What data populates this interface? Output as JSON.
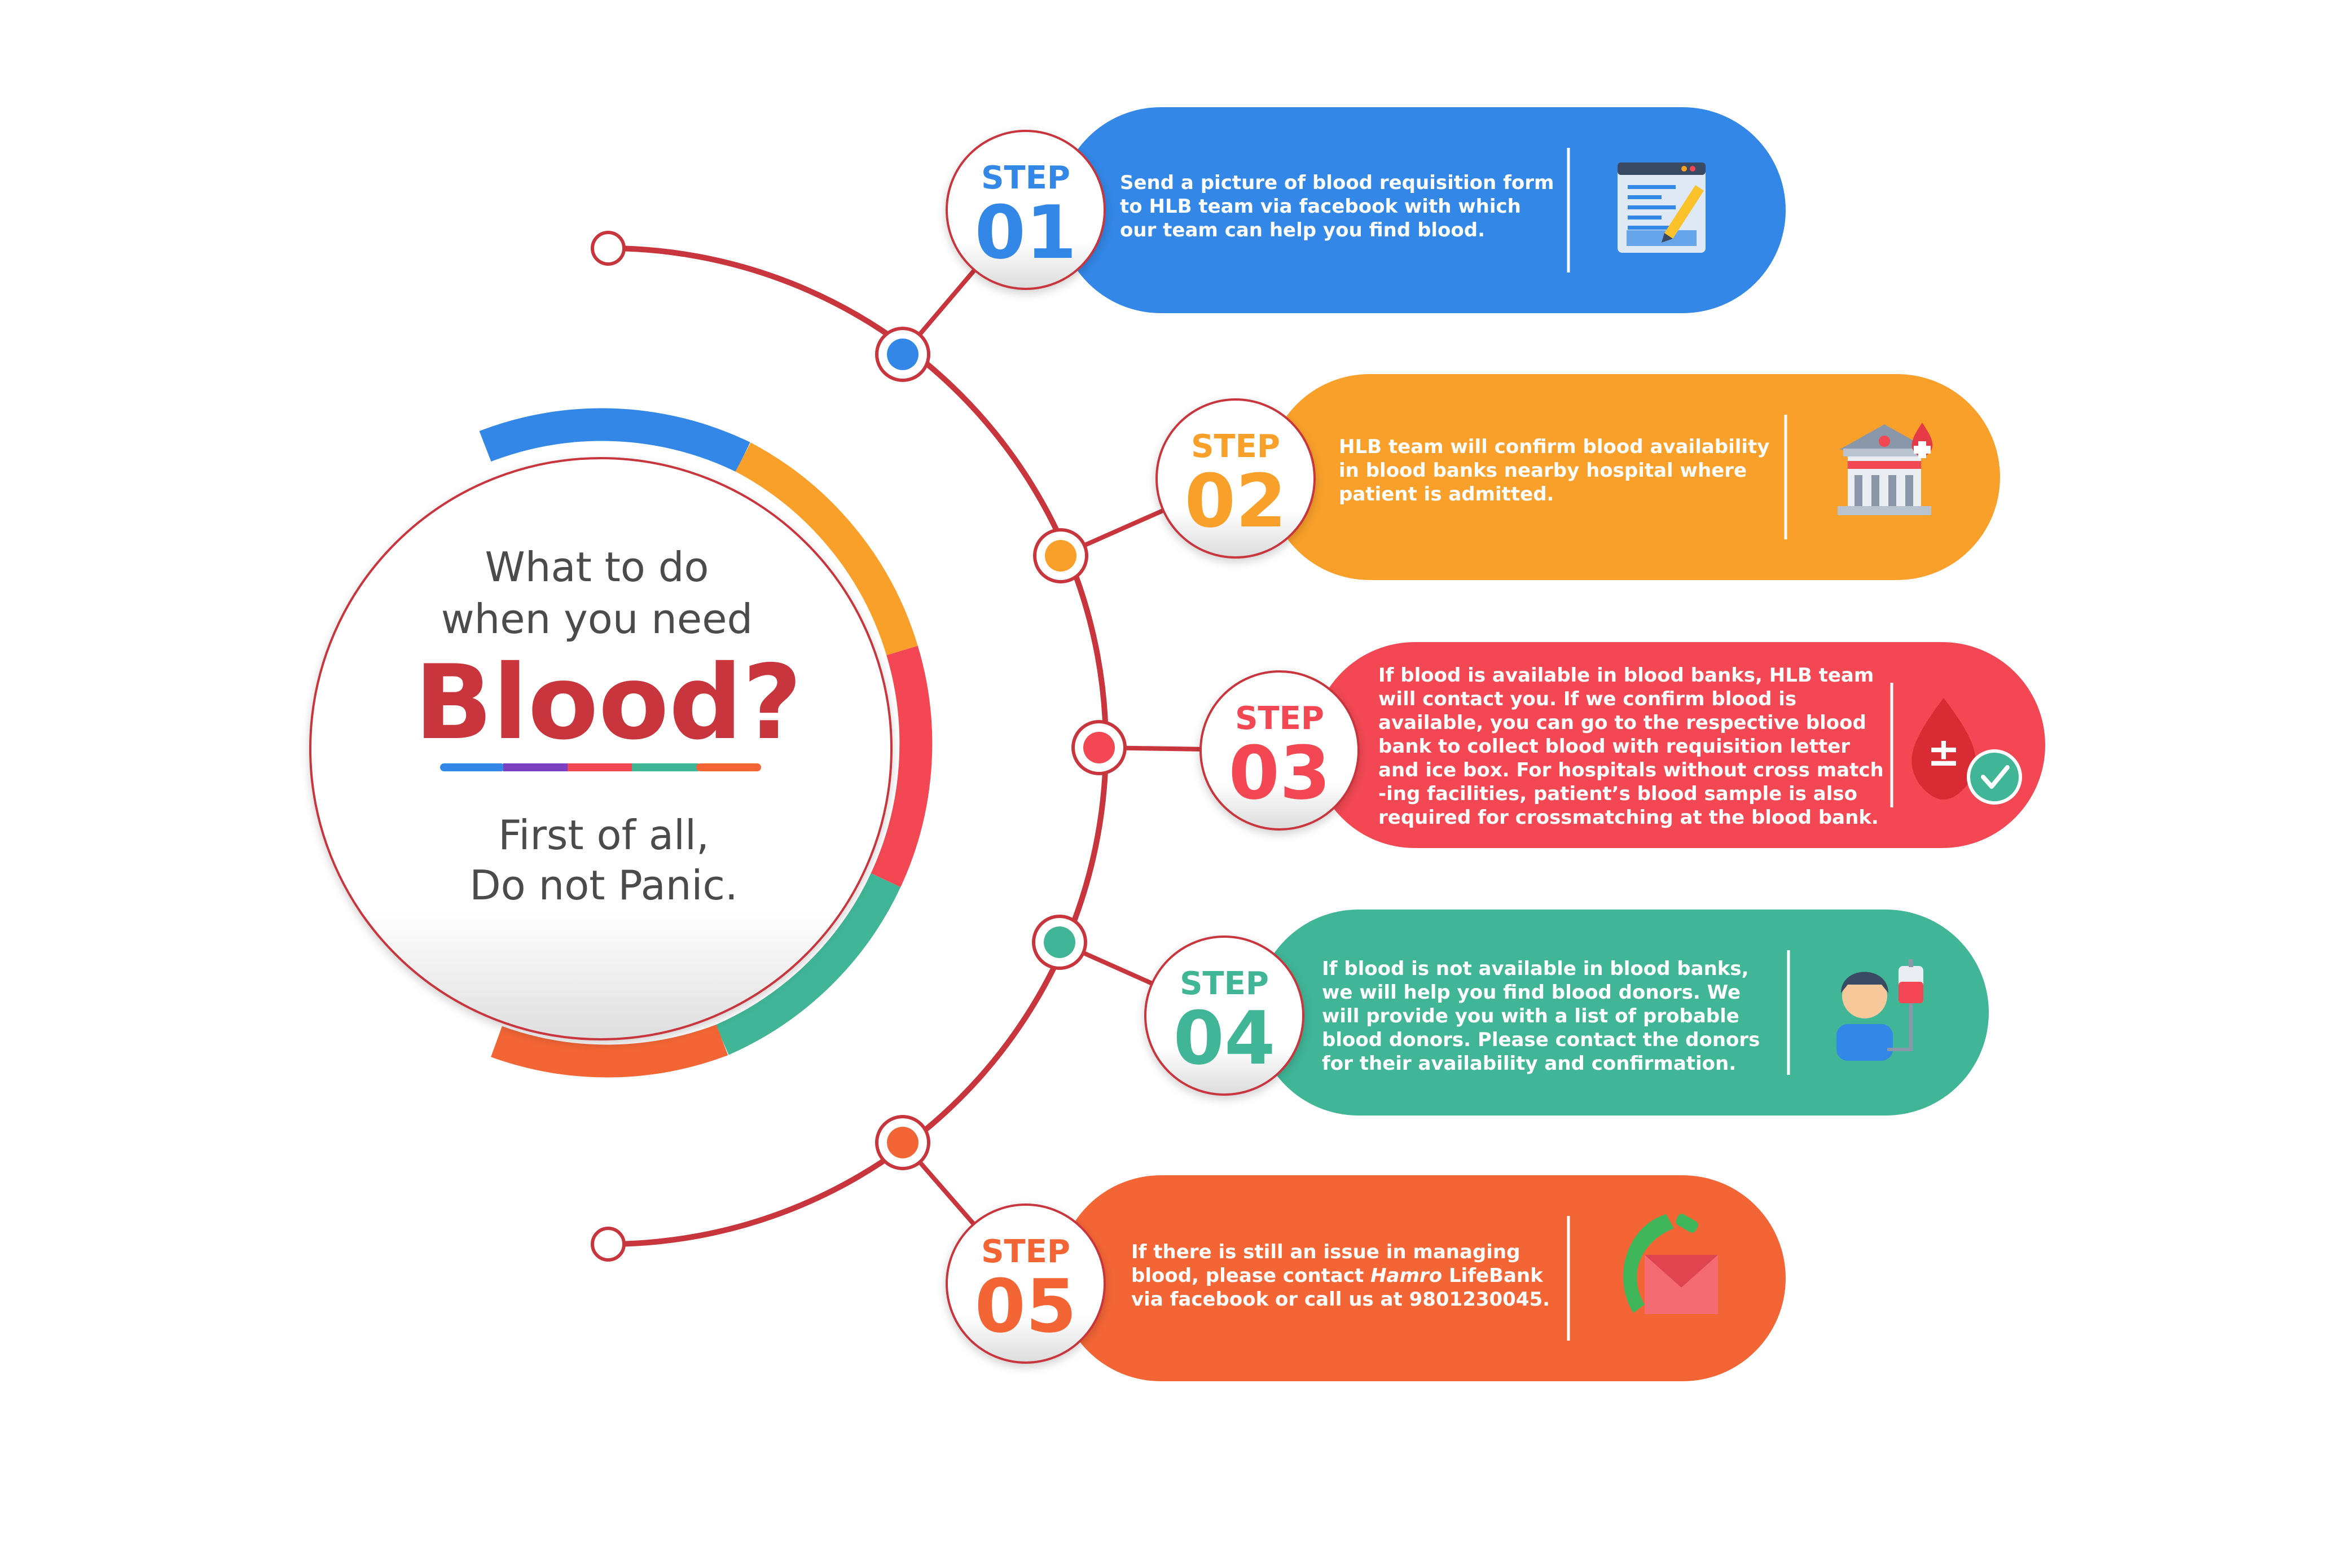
{
  "center": {
    "line1": "What to do",
    "line2": "when you need",
    "headline": "Blood?",
    "footer1": "First of all,",
    "footer2": "Do not Panic."
  },
  "colors": {
    "blue": "#3387e6",
    "orange": "#f9a02a",
    "red": "#f34853",
    "teal": "#40b696",
    "deep_orange": "#f46535",
    "purple": "#7b3fc1",
    "dark_red": "#c9353c",
    "spine": "#c9353c"
  },
  "steps": [
    {
      "label": "STEP",
      "number": "01",
      "color": "#3387e6",
      "icon": "form-edit-icon",
      "lines": [
        "Send a picture of blood requisition form",
        "to HLB team via facebook with which",
        "our team can help you find blood."
      ]
    },
    {
      "label": "STEP",
      "number": "02",
      "color": "#f9a02a",
      "icon": "blood-bank-icon",
      "lines": [
        "HLB team will confirm blood availability",
        "in blood banks nearby hospital where",
        "patient is admitted."
      ]
    },
    {
      "label": "STEP",
      "number": "03",
      "color": "#f34853",
      "icon": "blood-drop-check-icon",
      "lines": [
        "If blood is available in blood banks, HLB team",
        "will contact you. If we confirm blood is",
        "available, you can go to the respective blood",
        "bank to collect blood with requisition letter",
        "and ice box. For hospitals without cross match",
        "-ing facilities, patient’s blood sample is also",
        "required for crossmatching at the blood bank."
      ]
    },
    {
      "label": "STEP",
      "number": "04",
      "color": "#40b696",
      "icon": "blood-donor-icon",
      "lines": [
        "If blood is not available in blood banks,",
        "we will help you find blood donors. We",
        "will provide you with a list of probable",
        "blood donors. Please contact  the donors",
        "for their availability and confirmation."
      ]
    },
    {
      "label": "STEP",
      "number": "05",
      "color": "#f46535",
      "icon": "phone-mail-icon",
      "lines": [
        "If there is still an issue in managing",
        "blood, please contact Hamro LifeBank",
        "via facebook or call us at 9801230045."
      ]
    }
  ]
}
